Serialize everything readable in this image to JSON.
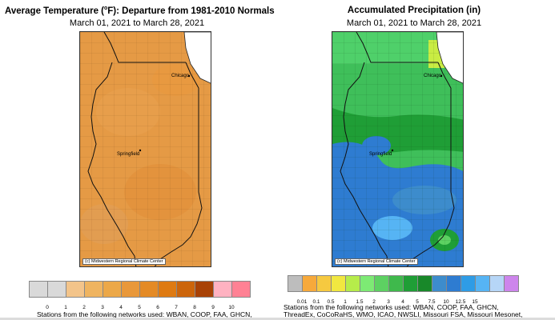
{
  "left_panel": {
    "title_prefix": "Average Temperature (",
    "title_sup": "o",
    "title_suffix": "F): Departure from 1981-2010 Normals",
    "date_range": "March 01, 2021 to March 28, 2021",
    "credit": "(c) Midwestern Regional Climate Center",
    "cities": {
      "chicago": "Chicago",
      "springfield": "Springfield"
    },
    "legend": {
      "colors": [
        "#d9d9d9",
        "#d9d9d9",
        "#f3c48a",
        "#efb460",
        "#eca848",
        "#e9983a",
        "#e48a25",
        "#de7a12",
        "#cc650b",
        "#a84206",
        "#ffb2c1",
        "#ff8194"
      ],
      "ticks": [
        "0",
        "1",
        "2",
        "3",
        "4",
        "5",
        "6",
        "7",
        "8",
        "9",
        "10"
      ]
    },
    "stations": "Stations from the following networks used: WBAN, COOP, FAA, GHCN,"
  },
  "right_panel": {
    "title": "Accumulated Precipitation (in)",
    "date_range": "March 01, 2021 to March 28, 2021",
    "credit": "(c) Midwestern Regional Climate Center",
    "cities": {
      "chicago": "Chicago",
      "springfield": "Springfield"
    },
    "legend": {
      "colors": [
        "#bdbdbd",
        "#f7a93b",
        "#f6c940",
        "#f1e740",
        "#b6ec4a",
        "#7dea74",
        "#5dd162",
        "#3fb94c",
        "#1f9e36",
        "#188829",
        "#3d8ccc",
        "#2e7cd1",
        "#2e9ce6",
        "#56b4f4",
        "#b6d6f7",
        "#cd85ec"
      ],
      "ticks": [
        "0.01",
        "0.1",
        "0.5",
        "1",
        "1.5",
        "2",
        "3",
        "4",
        "5",
        "7.5",
        "10",
        "12.5",
        "15"
      ]
    },
    "stations_line1": "Stations from the following networks used: WBAN, COOP, FAA, GHCN,",
    "stations_line2": "ThreadEx, CoCoRaHS, WMO, ICAO, NWSLI, Missouri FSA, Missouri Mesonet,"
  }
}
